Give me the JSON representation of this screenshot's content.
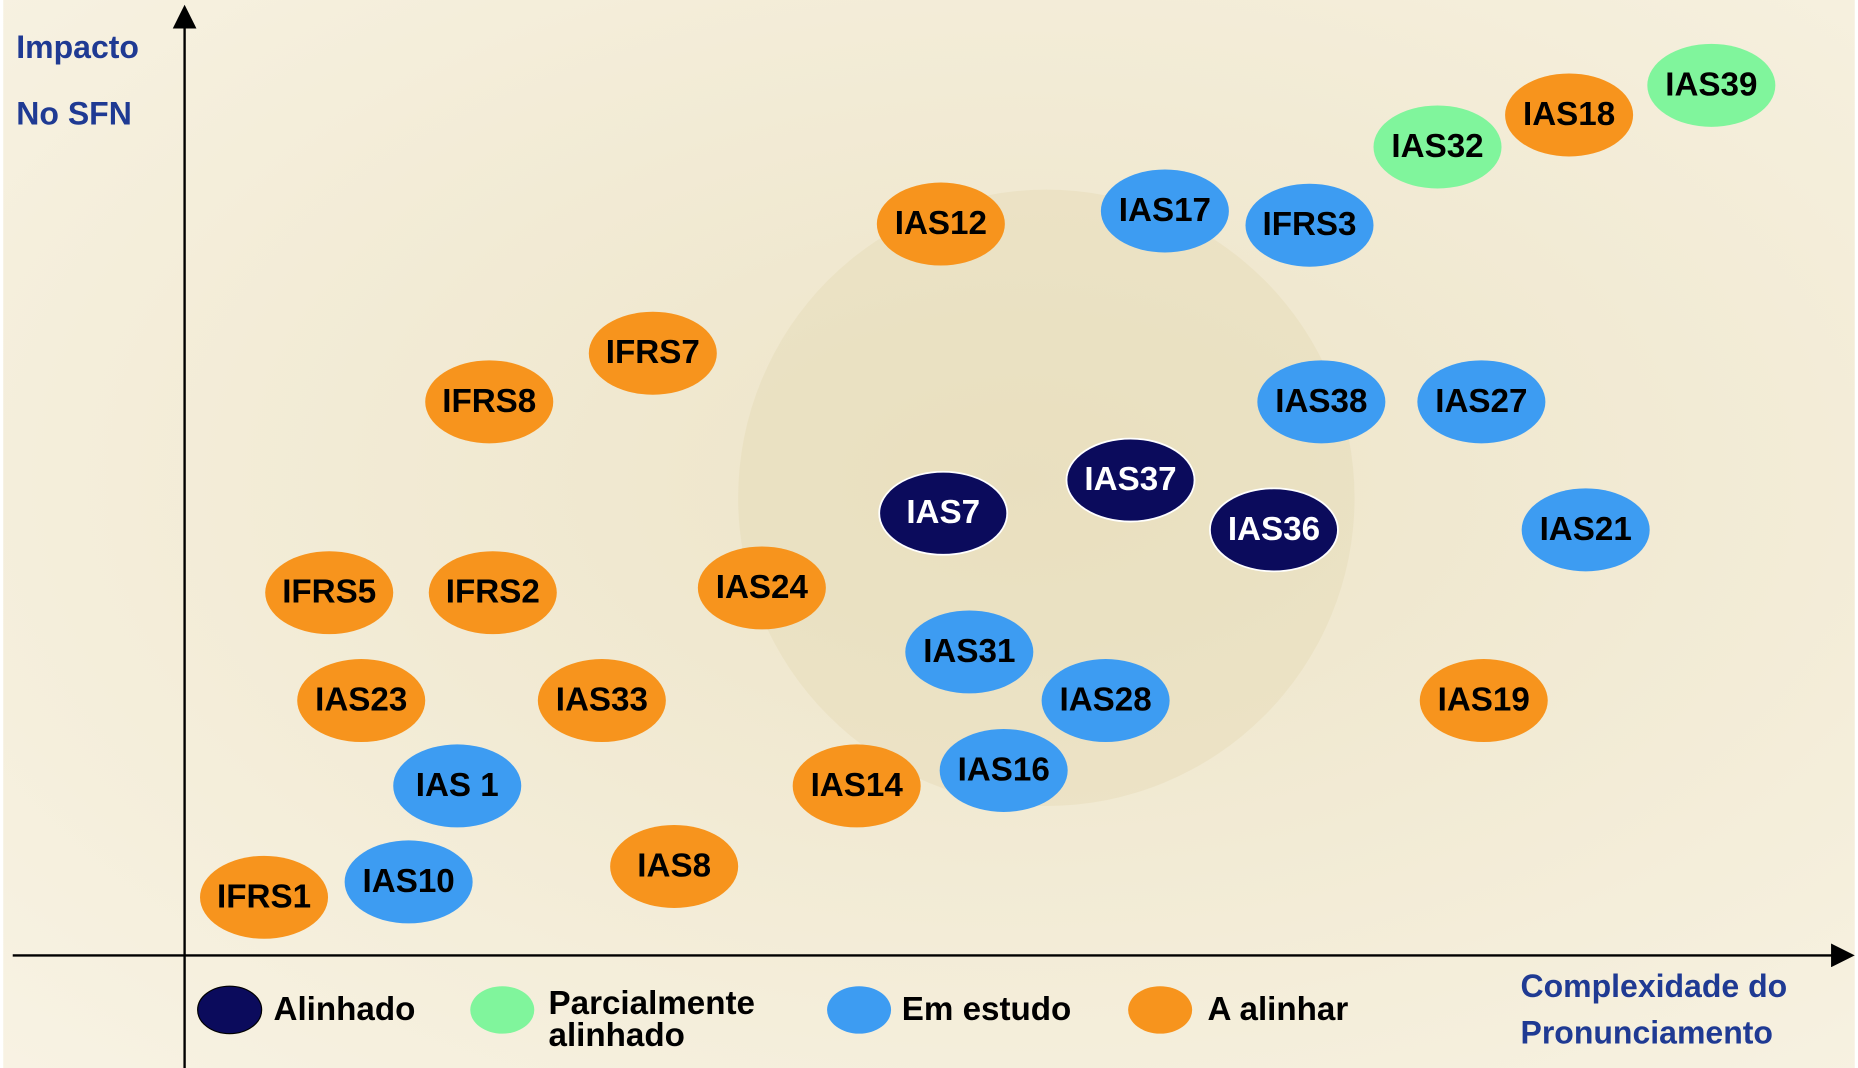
{
  "y_axis_label": [
    "Impacto",
    "No SFN"
  ],
  "x_axis_label": [
    "Complexidade do",
    "Pronunciamento"
  ],
  "groups": [
    {
      "name": [
        "Alinhado"
      ],
      "color": "#0b0b5c",
      "text_color": "#ffffff",
      "nodes": [
        "IAS7",
        "IAS37",
        "IAS36"
      ]
    },
    {
      "name": [
        "Parcialmente",
        "alinhado"
      ],
      "color": "#80f59c",
      "text_color": "#000000",
      "nodes": [
        "IAS39",
        "IAS32"
      ]
    },
    {
      "name": [
        "Em estudo"
      ],
      "color": "#3d9cf2",
      "text_color": "#000000",
      "nodes": [
        "IAS17",
        "IFRS3",
        "IAS38",
        "IAS27",
        "IAS21",
        "IAS31",
        "IAS28",
        "IAS16",
        "IAS 1",
        "IAS10"
      ]
    },
    {
      "name": [
        "A alinhar"
      ],
      "color": "#f7941d",
      "text_color": "#000000",
      "nodes": [
        "IAS18",
        "IAS12",
        "IFRS7",
        "IFRS8",
        "IFRS5",
        "IFRS2",
        "IAS24",
        "IAS23",
        "IAS33",
        "IAS19",
        "IAS14",
        "IAS8",
        "IFRS1"
      ]
    }
  ]
}
